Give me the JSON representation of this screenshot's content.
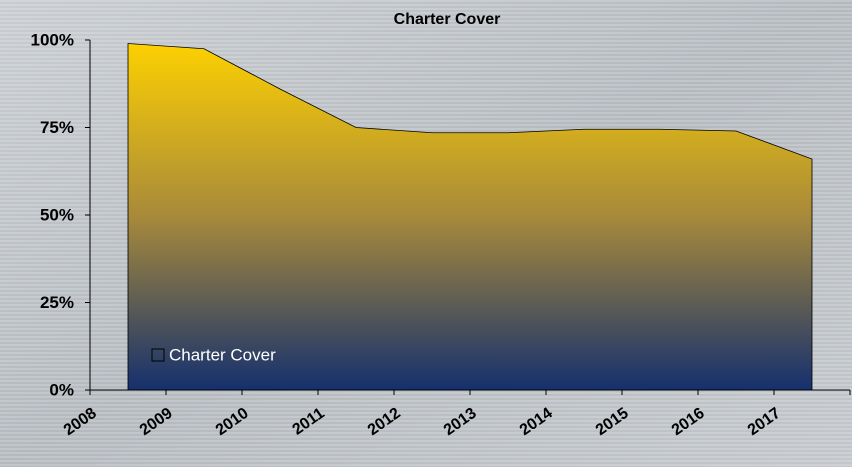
{
  "chart_data": {
    "type": "area",
    "title": "Charter Cover",
    "categories": [
      "2008",
      "2009",
      "2010",
      "2011",
      "2012",
      "2013",
      "2014",
      "2015",
      "2016",
      "2017"
    ],
    "series": [
      {
        "name": "Charter Cover",
        "color_top": "#ffd200",
        "color_bottom": "#15306e",
        "values": [
          99,
          97.5,
          86,
          75,
          73.5,
          73.5,
          74.5,
          74.5,
          74,
          66
        ]
      }
    ],
    "ylim": [
      0,
      100
    ],
    "yticks": [
      {
        "value": 0,
        "label": "0%"
      },
      {
        "value": 25,
        "label": "25%"
      },
      {
        "value": 50,
        "label": "50%"
      },
      {
        "value": 75,
        "label": "75%"
      },
      {
        "value": 100,
        "label": "100%"
      }
    ],
    "legend": "bottom-left"
  }
}
